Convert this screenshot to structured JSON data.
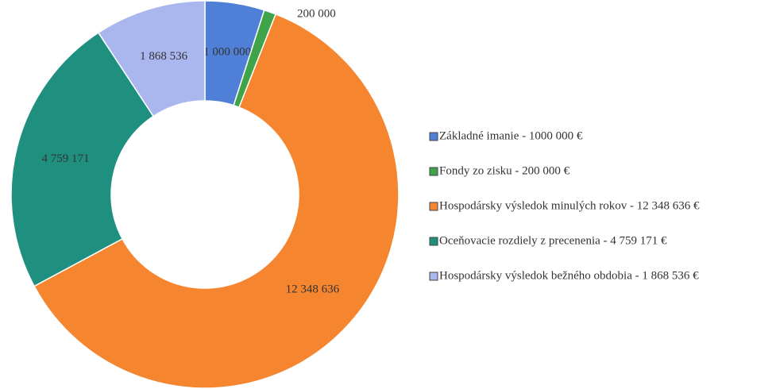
{
  "chart_data": {
    "type": "donut",
    "categories": [
      "Základné imanie - 1000 000 €",
      "Fondy zo zisku - 200 000 €",
      "Hospodársky výsledok minulých rokov -  12 348 636 €",
      "Oceňovacie rozdiely z precenenia - 4 759 171 €",
      "Hospodársky výsledok bežného obdobia -  1 868 536 €"
    ],
    "values": [
      1000000,
      200000,
      12348636,
      4759171,
      1868536
    ],
    "value_labels": [
      "1 000 000",
      "200 000",
      "12 348 636",
      "4 759 171",
      "1 868 536"
    ],
    "colors": [
      "#4f7fd6",
      "#3fa34a",
      "#f5852f",
      "#1f9080",
      "#aab6ee"
    ],
    "legend": "right"
  }
}
